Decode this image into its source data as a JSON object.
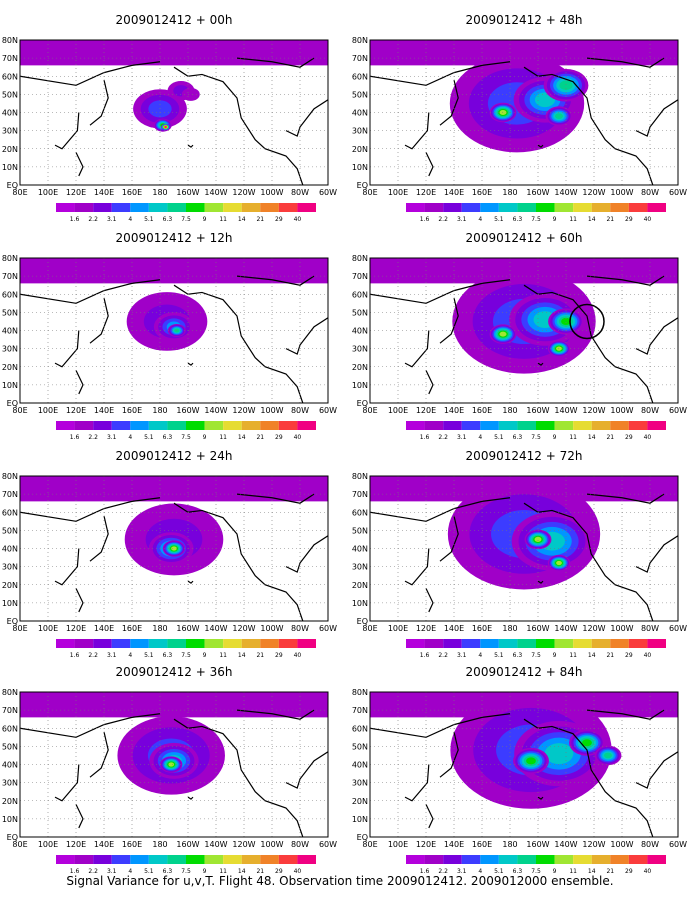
{
  "figure": {
    "caption": "Signal Variance for u,v,T. Flight 48. Observation time 2009012412. 2009012000 ensemble."
  },
  "map": {
    "lat_labels": [
      "80N",
      "70N",
      "60N",
      "50N",
      "40N",
      "30N",
      "20N",
      "10N",
      "EQ"
    ],
    "lon_labels": [
      "80E",
      "100E",
      "120E",
      "140E",
      "160E",
      "180",
      "160W",
      "140W",
      "120W",
      "100W",
      "80W",
      "60W"
    ]
  },
  "colorbar": {
    "labels": [
      "1.6",
      "2.2",
      "3.1",
      "4",
      "5.1",
      "6.3",
      "7.5",
      "9",
      "11",
      "14",
      "21",
      "29",
      "40"
    ],
    "colors": [
      "#a000c8",
      "#7800dc",
      "#3c3cff",
      "#0096ff",
      "#00c8c8",
      "#00d28c",
      "#00dc00",
      "#a0e632",
      "#e6dc32",
      "#e6af2d",
      "#f08228",
      "#fa3c3c",
      "#f00082"
    ]
  },
  "chart_data": [
    {
      "type": "heatmap",
      "title": "2009012412 + 00h",
      "lead_hours": 0,
      "blobs": [
        {
          "lon": 180,
          "lat": 42,
          "r": 12,
          "level": 2
        },
        {
          "lon": -165,
          "lat": 52,
          "r": 6,
          "level": 1
        },
        {
          "lon": -158,
          "lat": 50,
          "r": 4,
          "level": 0
        },
        {
          "lon": -178,
          "lat": 33,
          "r": 4,
          "level": 6
        },
        {
          "lon": -176,
          "lat": 32,
          "r": 2,
          "level": 12
        }
      ]
    },
    {
      "type": "heatmap",
      "title": "2009012412 + 48h",
      "lead_hours": 48,
      "blobs": [
        {
          "lon": -175,
          "lat": 45,
          "r": 30,
          "level": 2
        },
        {
          "lon": -155,
          "lat": 47,
          "r": 14,
          "level": 4
        },
        {
          "lon": -140,
          "lat": 55,
          "r": 10,
          "level": 5
        },
        {
          "lon": 175,
          "lat": 40,
          "r": 6,
          "level": 7
        },
        {
          "lon": -145,
          "lat": 38,
          "r": 6,
          "level": 5
        }
      ]
    },
    {
      "type": "heatmap",
      "title": "2009012412 + 12h",
      "lead_hours": 12,
      "blobs": [
        {
          "lon": -175,
          "lat": 45,
          "r": 18,
          "level": 1
        },
        {
          "lon": -170,
          "lat": 42,
          "r": 9,
          "level": 3
        },
        {
          "lon": -168,
          "lat": 40,
          "r": 4,
          "level": 5
        }
      ]
    },
    {
      "type": "heatmap",
      "title": "2009012412 + 60h",
      "lead_hours": 60,
      "blobs": [
        {
          "lon": -170,
          "lat": 45,
          "r": 32,
          "level": 2
        },
        {
          "lon": -155,
          "lat": 46,
          "r": 16,
          "level": 4
        },
        {
          "lon": -140,
          "lat": 45,
          "r": 8,
          "level": 6
        },
        {
          "lon": 175,
          "lat": 38,
          "r": 6,
          "level": 7
        },
        {
          "lon": -145,
          "lat": 30,
          "r": 5,
          "level": 7
        }
      ]
    },
    {
      "type": "heatmap",
      "title": "2009012412 + 24h",
      "lead_hours": 24,
      "blobs": [
        {
          "lon": -170,
          "lat": 45,
          "r": 22,
          "level": 1
        },
        {
          "lon": -172,
          "lat": 40,
          "r": 10,
          "level": 4
        },
        {
          "lon": -170,
          "lat": 40,
          "r": 5,
          "level": 7
        }
      ]
    },
    {
      "type": "heatmap",
      "title": "2009012412 + 72h",
      "lead_hours": 72,
      "blobs": [
        {
          "lon": -170,
          "lat": 48,
          "r": 34,
          "level": 2
        },
        {
          "lon": -150,
          "lat": 44,
          "r": 18,
          "level": 4
        },
        {
          "lon": -160,
          "lat": 45,
          "r": 6,
          "level": 7
        },
        {
          "lon": -145,
          "lat": 32,
          "r": 5,
          "level": 7
        }
      ]
    },
    {
      "type": "heatmap",
      "title": "2009012412 + 36h",
      "lead_hours": 36,
      "blobs": [
        {
          "lon": -172,
          "lat": 45,
          "r": 24,
          "level": 2
        },
        {
          "lon": -170,
          "lat": 42,
          "r": 11,
          "level": 4
        },
        {
          "lon": -172,
          "lat": 40,
          "r": 5,
          "level": 7
        }
      ]
    },
    {
      "type": "heatmap",
      "title": "2009012412 + 84h",
      "lead_hours": 84,
      "blobs": [
        {
          "lon": -165,
          "lat": 48,
          "r": 36,
          "level": 2
        },
        {
          "lon": -145,
          "lat": 46,
          "r": 20,
          "level": 4
        },
        {
          "lon": -165,
          "lat": 42,
          "r": 8,
          "level": 6
        },
        {
          "lon": -125,
          "lat": 52,
          "r": 8,
          "level": 6
        },
        {
          "lon": -110,
          "lat": 45,
          "r": 6,
          "level": 5
        }
      ]
    }
  ]
}
